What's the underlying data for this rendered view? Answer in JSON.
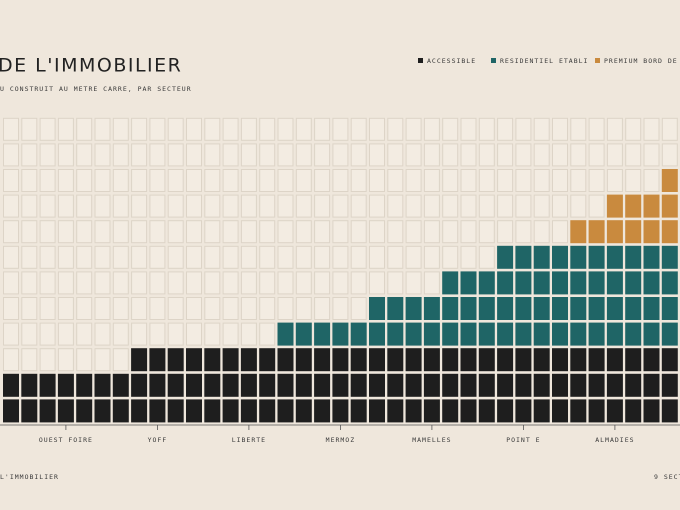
{
  "chart_data": {
    "type": "waffle",
    "title": "DE L'IMMOBILIER",
    "subtitle": "U CONSTRUIT AU METRE CARRE, PAR SECTEUR",
    "categories": [
      null,
      null,
      null,
      "OUEST FOIRE",
      null,
      null,
      null,
      null,
      "YOFF",
      null,
      null,
      null,
      null,
      "LIBERTE",
      null,
      null,
      null,
      null,
      "MERMOZ",
      null,
      null,
      null,
      null,
      "MAMELLES",
      null,
      null,
      null,
      null,
      "POINT E",
      null,
      null,
      null,
      null,
      "ALMADIES",
      null,
      null,
      null
    ],
    "series": [
      {
        "name": "ACCESSIBLE",
        "color": "#1e1e1e",
        "values": [
          2,
          2,
          2,
          2,
          2,
          2,
          2,
          3,
          3,
          3,
          3,
          3,
          3,
          3,
          3,
          3,
          3,
          3,
          3,
          3,
          3,
          3,
          3,
          3,
          3,
          3,
          3,
          3,
          3,
          3,
          3,
          3,
          3,
          3,
          3,
          3,
          3
        ]
      },
      {
        "name": "RESIDENTIEL ETABLI",
        "color": "#1f6566",
        "values": [
          0,
          0,
          0,
          0,
          0,
          0,
          0,
          0,
          0,
          0,
          0,
          0,
          0,
          0,
          0,
          1,
          1,
          1,
          1,
          1,
          2,
          2,
          2,
          2,
          3,
          3,
          3,
          4,
          4,
          4,
          4,
          4,
          4,
          4,
          4,
          4,
          4
        ]
      },
      {
        "name": "PREMIUM BORD DE MER",
        "color": "#c98a3e",
        "values": [
          0,
          0,
          0,
          0,
          0,
          0,
          0,
          0,
          0,
          0,
          0,
          0,
          0,
          0,
          0,
          0,
          0,
          0,
          0,
          0,
          0,
          0,
          0,
          0,
          0,
          0,
          0,
          0,
          0,
          0,
          0,
          1,
          1,
          2,
          2,
          2,
          3
        ]
      }
    ],
    "ylim": [
      0,
      12
    ],
    "footer_left": "L'IMMOBILIER",
    "footer_right": "9 SECT"
  }
}
